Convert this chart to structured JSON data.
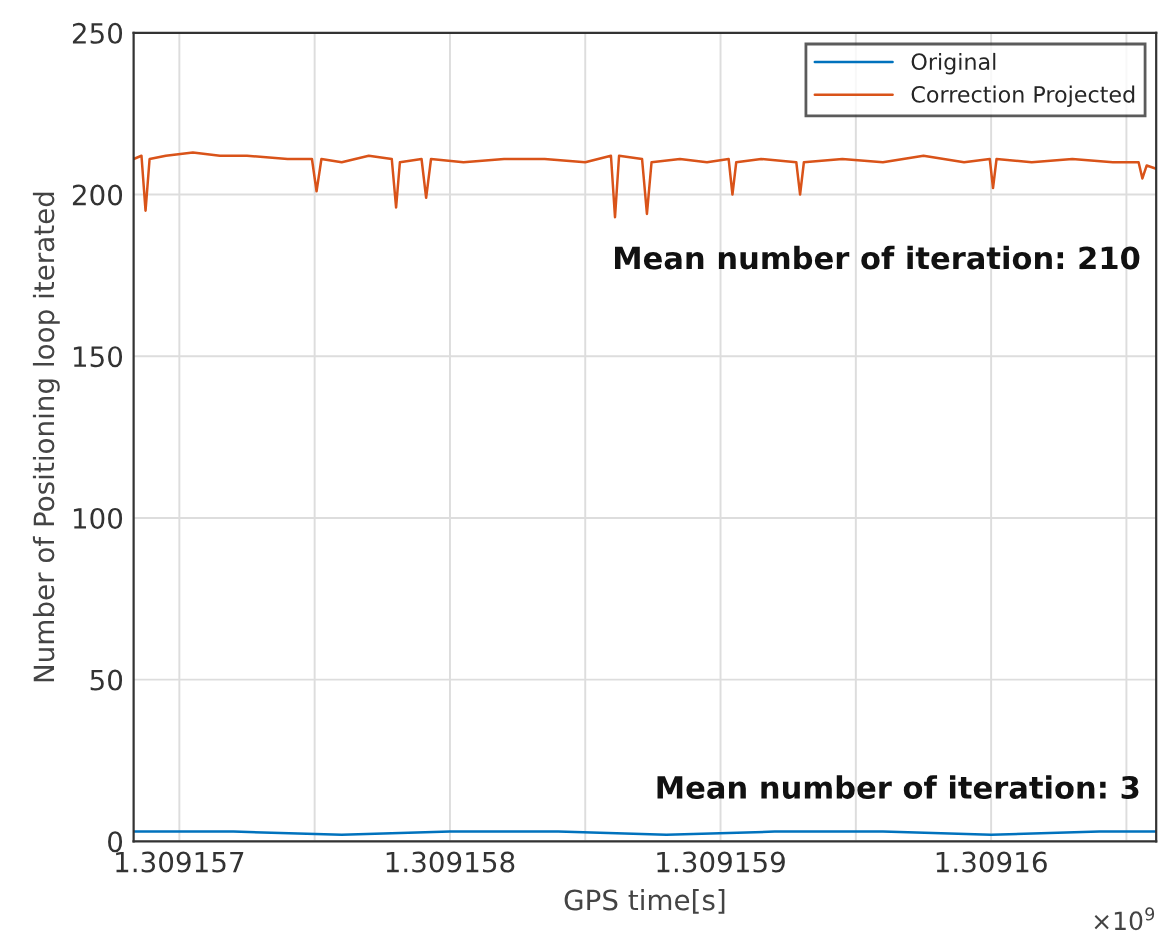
{
  "chart_data": {
    "type": "line",
    "xlabel": "GPS time[s]",
    "ylabel": "Number of Positioning loop iterated",
    "xlim": [
      1.309156831,
      1.30916061
    ],
    "ylim": [
      0,
      250
    ],
    "xticks": [
      1.309157,
      {
        "value": 1.3091575,
        "label": null
      },
      1.309158,
      {
        "value": 1.3091585,
        "label": null
      },
      1.309159,
      {
        "value": 1.3091595,
        "label": null
      },
      1.30916,
      {
        "value": 1.3091605,
        "label": null
      }
    ],
    "yticks": [
      0,
      50,
      100,
      150,
      200,
      250
    ],
    "grid": true,
    "legend": "top right",
    "line_style": "solid",
    "marker": "none",
    "annotations": [
      "Mean number of iteration: 210",
      "Mean number of iteration: 3",
      "×10$^{9}$"
    ],
    "series": [
      {
        "name": "Original",
        "color": "#0072bd",
        "x": [
          1.309156831,
          1.3091572,
          1.3091576,
          1.309158,
          1.3091584,
          1.3091588,
          1.3091592,
          1.3091596,
          1.30916,
          1.3091604,
          1.30916061
        ],
        "values": [
          3,
          3,
          2,
          3,
          3,
          2,
          3,
          3,
          2,
          3,
          3
        ]
      },
      {
        "name": "Correction Projected",
        "color": "#d95319",
        "x": [
          1.309156831,
          1.30915686,
          1.309156875,
          1.30915689,
          1.30915695,
          1.30915705,
          1.30915715,
          1.30915725,
          1.3091574,
          1.30915749,
          1.309157507,
          1.309157525,
          1.3091576,
          1.3091577,
          1.309157785,
          1.309157801,
          1.309157815,
          1.309157895,
          1.309157912,
          1.30915793,
          1.30915805,
          1.3091582,
          1.30915835,
          1.3091585,
          1.309158595,
          1.30915861,
          1.309158625,
          1.30915871,
          1.309158728,
          1.309158745,
          1.30915885,
          1.30915895,
          1.30915903,
          1.309159044,
          1.309159058,
          1.30915915,
          1.30915928,
          1.309159294,
          1.309159308,
          1.30915945,
          1.3091596,
          1.30915975,
          1.3091599,
          1.309159995,
          1.309160007,
          1.30916002,
          1.30916015,
          1.3091603,
          1.30916045,
          1.309160545,
          1.309160559,
          1.309160575,
          1.30916061
        ],
        "values": [
          211,
          212,
          195,
          211,
          212,
          213,
          212,
          212,
          211,
          211,
          201,
          211,
          210,
          212,
          211,
          196,
          210,
          211,
          199,
          211,
          210,
          211,
          211,
          210,
          212,
          193,
          212,
          211,
          194,
          210,
          211,
          210,
          211,
          200,
          210,
          211,
          210,
          200,
          210,
          211,
          210,
          212,
          210,
          211,
          202,
          211,
          210,
          211,
          210,
          210,
          205,
          209,
          208
        ]
      }
    ]
  }
}
